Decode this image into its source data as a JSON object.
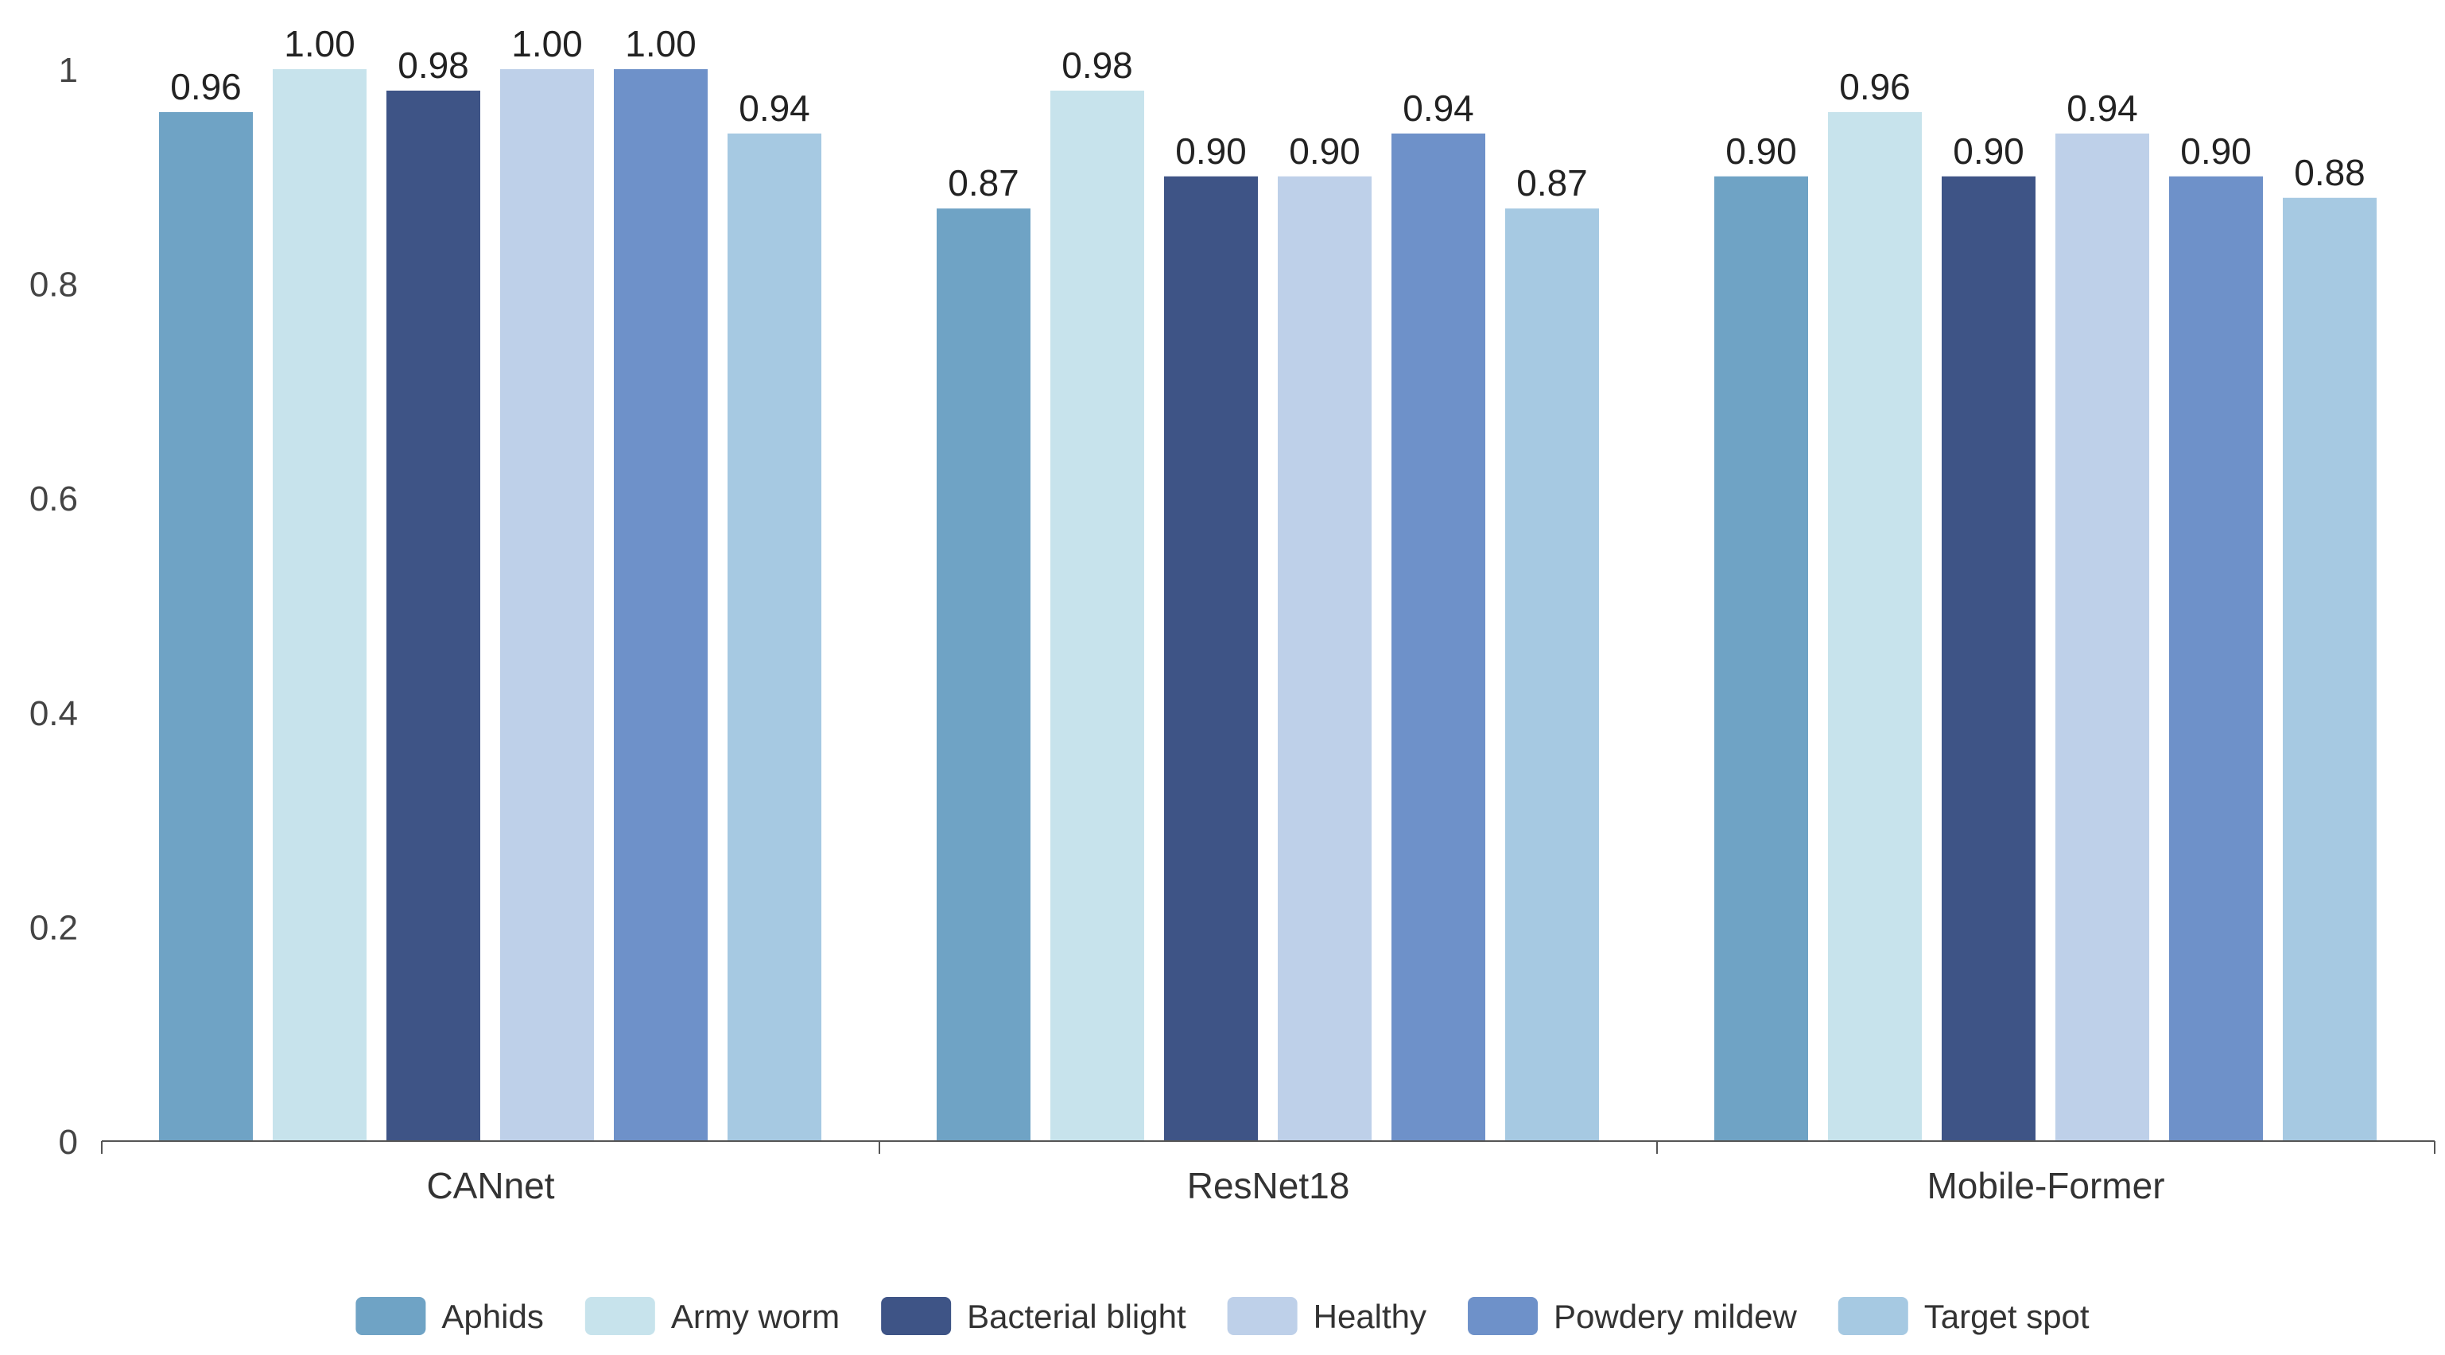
{
  "chart_data": {
    "type": "bar",
    "title": "",
    "xlabel": "",
    "ylabel": "",
    "ylim": [
      0,
      1
    ],
    "grid": false,
    "legend_position": "bottom",
    "yticks": [
      {
        "value": 0,
        "label": "0"
      },
      {
        "value": 0.2,
        "label": "0.2"
      },
      {
        "value": 0.4,
        "label": "0.4"
      },
      {
        "value": 0.6,
        "label": "0.6"
      },
      {
        "value": 0.8,
        "label": "0.8"
      },
      {
        "value": 1,
        "label": "1"
      }
    ],
    "categories": [
      "CANnet",
      "ResNet18",
      "Mobile-Former"
    ],
    "series": [
      {
        "name": "Aphids",
        "color": "#6fa3c5",
        "values": [
          0.96,
          0.87,
          0.9
        ],
        "labels": [
          "0.96",
          "0.87",
          "0.90"
        ]
      },
      {
        "name": "Army worm",
        "color": "#c7e3ec",
        "values": [
          1.0,
          0.98,
          0.96
        ],
        "labels": [
          "1.00",
          "0.98",
          "0.96"
        ]
      },
      {
        "name": "Bacterial blight",
        "color": "#3e5486",
        "values": [
          0.98,
          0.9,
          0.9
        ],
        "labels": [
          "0.98",
          "0.90",
          "0.90"
        ]
      },
      {
        "name": "Healthy",
        "color": "#bed0e9",
        "values": [
          1.0,
          0.9,
          0.94
        ],
        "labels": [
          "1.00",
          "0.90",
          "0.94"
        ]
      },
      {
        "name": "Powdery mildew",
        "color": "#6e91c9",
        "values": [
          1.0,
          0.94,
          0.9
        ],
        "labels": [
          "1.00",
          "0.94",
          "0.90"
        ]
      },
      {
        "name": "Target spot",
        "color": "#a6c9e2",
        "values": [
          0.94,
          0.87,
          0.88
        ],
        "labels": [
          "0.94",
          "0.87",
          "0.88"
        ]
      }
    ]
  }
}
